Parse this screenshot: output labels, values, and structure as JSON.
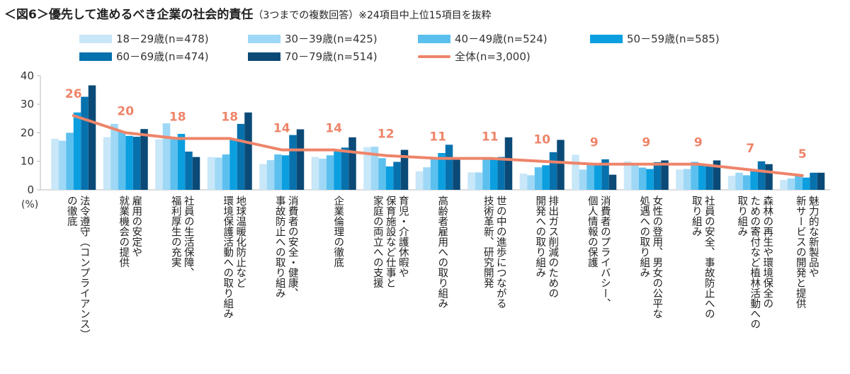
{
  "chart_data": {
    "type": "bar",
    "title": "＜図6＞優先して進めるべき企業の社会的責任",
    "subtitle": "（3つまでの複数回答）※24項目中上位15項目を抜粋",
    "ylabel": "(%)",
    "ylim": [
      0,
      40
    ],
    "yticks": [
      0,
      10,
      20,
      30,
      40
    ],
    "legend_position": "top",
    "categories": [
      [
        "法令遵守（コンプライアンス）",
        "の徹底"
      ],
      [
        "雇用の安定や",
        "就業機会の提供"
      ],
      [
        "社員の生活保障、",
        "福利厚生の充実"
      ],
      [
        "地球温暖化防止など",
        "環境保護活動への取り組み"
      ],
      [
        "消費者の安全・健康、",
        "事故防止への取り組み"
      ],
      [
        "企業倫理の徹底"
      ],
      [
        "育児・介護休暇や",
        "保育施設など仕事と",
        "家庭の両立への支援"
      ],
      [
        "高齢者雇用への取り組み"
      ],
      [
        "世の中の進歩につながる",
        "技術革新、研究開発"
      ],
      [
        "排出ガス削減のための",
        "開発への取り組み"
      ],
      [
        "消費者のプライバシー、",
        "個人情報の保護"
      ],
      [
        "女性の登用、男女の公平な",
        "処遇への取り組み"
      ],
      [
        "社員の安全、事故防止への",
        "取り組み"
      ],
      [
        "森林の再生や環境保全の",
        "ための寄付など植林活動への",
        "取り組み"
      ],
      [
        "魅力的な新製品や",
        "新サービスの開発と提供"
      ]
    ],
    "series": [
      {
        "name": "18－29歳(n=478)",
        "color": "#c8e7f8",
        "values": [
          17.9,
          18.5,
          17.7,
          11.5,
          9.0,
          11.5,
          15.0,
          6.5,
          6.1,
          5.7,
          12.3,
          10.0,
          7.1,
          4.9,
          3.5
        ]
      },
      {
        "name": "30－39歳(n=425)",
        "color": "#9ed8f6",
        "values": [
          17.2,
          23.1,
          23.3,
          11.3,
          10.4,
          10.9,
          15.1,
          7.9,
          6.1,
          5.1,
          7.1,
          9.4,
          7.3,
          6.0,
          4.0
        ]
      },
      {
        "name": "40－49歳(n=524)",
        "color": "#5cc0ef",
        "values": [
          20.0,
          20.6,
          17.7,
          12.4,
          12.4,
          12.1,
          11.1,
          10.7,
          11.1,
          7.9,
          8.8,
          7.8,
          9.8,
          5.1,
          4.9
        ]
      },
      {
        "name": "50－59歳(n=585)",
        "color": "#0b9fe0",
        "values": [
          27.1,
          18.9,
          19.6,
          17.7,
          12.1,
          14.2,
          8.2,
          12.9,
          11.1,
          8.6,
          8.8,
          7.3,
          8.6,
          6.5,
          4.3
        ]
      },
      {
        "name": "60－69歳(n=474)",
        "color": "#0671ad",
        "values": [
          32.6,
          18.6,
          13.4,
          23.1,
          19.2,
          14.8,
          9.8,
          15.8,
          11.5,
          13.2,
          10.7,
          9.7,
          8.2,
          10.0,
          6.0
        ]
      },
      {
        "name": "70－79歳(n=514)",
        "color": "#0b4a77",
        "values": [
          36.6,
          21.3,
          11.5,
          27.1,
          21.2,
          18.4,
          14.0,
          10.7,
          18.4,
          17.5,
          5.3,
          10.3,
          10.3,
          9.0,
          6.0
        ]
      },
      {
        "name": "全体(n=3,000)",
        "type": "line",
        "color": "#ee8469",
        "values": [
          26,
          20,
          18,
          18,
          14,
          14,
          12,
          11,
          11,
          10,
          9,
          9,
          9,
          7,
          5
        ]
      }
    ]
  }
}
